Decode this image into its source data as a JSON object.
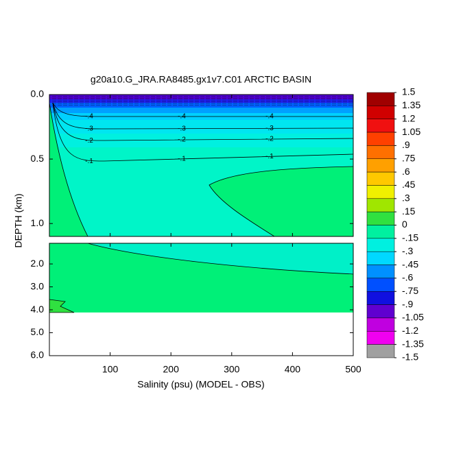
{
  "chart_data": {
    "type": "contour",
    "title": "g20a10.G_JRA.RA8485.gx1v7.C01 ARCTIC BASIN",
    "xlabel": "Salinity (psu) (MODEL - OBS)",
    "ylabel": "DEPTH (km)",
    "xlim": [
      0,
      500
    ],
    "xticks": [
      100,
      200,
      300,
      400,
      500
    ],
    "panels": [
      {
        "ylim": [
          0,
          1.1
        ],
        "yticks": [
          {
            "value": 0,
            "label": "0.0"
          },
          {
            "value": 0.5,
            "label": "0.5"
          },
          {
            "value": 1,
            "label": "1.0"
          }
        ]
      },
      {
        "ylim": [
          1.1,
          6
        ],
        "yticks": [
          {
            "value": 2,
            "label": "2.0"
          },
          {
            "value": 3,
            "label": "3.0"
          },
          {
            "value": 4,
            "label": "4.0"
          },
          {
            "value": 5,
            "label": "5.0"
          },
          {
            "value": 6,
            "label": "6.0"
          }
        ]
      }
    ],
    "contour_levels": [
      {
        "value": -0.1,
        "label": "-.1"
      },
      {
        "value": -0.2,
        "label": "-.2"
      },
      {
        "value": -0.3,
        "label": "-.3"
      },
      {
        "value": -0.4,
        "label": "-.4"
      }
    ],
    "colorbar": {
      "ticks": [
        1.5,
        1.35,
        1.2,
        1.05,
        {
          "value": 0.9,
          "label": ".9"
        },
        {
          "value": 0.75,
          "label": ".75"
        },
        {
          "value": 0.6,
          "label": ".6"
        },
        {
          "value": 0.45,
          "label": ".45"
        },
        {
          "value": 0.3,
          "label": ".3"
        },
        {
          "value": 0.15,
          "label": ".15"
        },
        0,
        {
          "value": -0.15,
          "label": "-.15"
        },
        {
          "value": -0.3,
          "label": "-.3"
        },
        {
          "value": -0.45,
          "label": "-.45"
        },
        {
          "value": -0.6,
          "label": "-.6"
        },
        {
          "value": -0.75,
          "label": "-.75"
        },
        {
          "value": -0.9,
          "label": "-.9"
        },
        -1.05,
        -1.2,
        -1.35,
        -1.5
      ],
      "colors": [
        "#a00000",
        "#d00000",
        "#f01010",
        "#ff4000",
        "#ff7000",
        "#ffa000",
        "#ffc800",
        "#f0f000",
        "#a0e600",
        "#30e040",
        "#00f0a0",
        "#00f0e0",
        "#00d8ff",
        "#0090ff",
        "#0050ff",
        "#1010e0",
        "#6000d0",
        "#c000e0",
        "#f000f0",
        "#a0a0a0"
      ]
    }
  }
}
